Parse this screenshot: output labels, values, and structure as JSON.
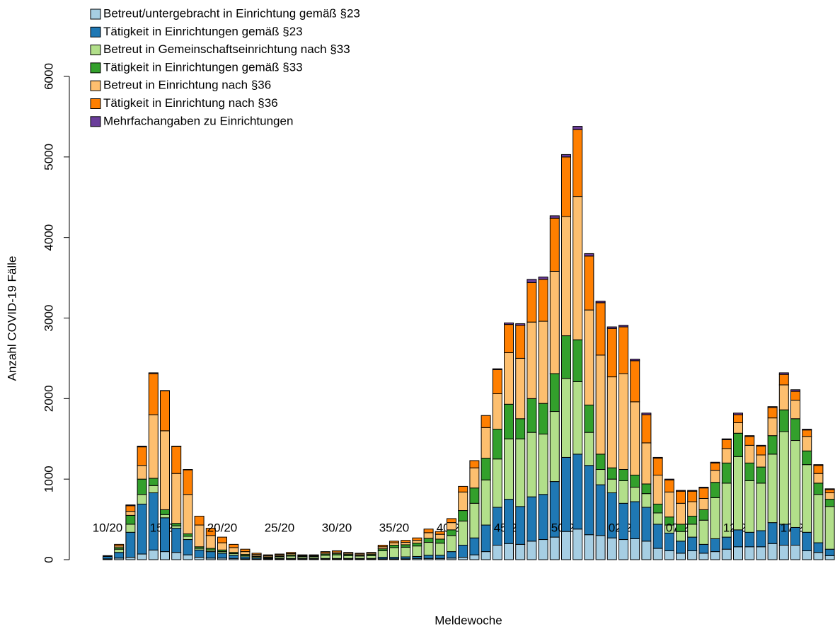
{
  "chart_data": {
    "type": "stacked_bar",
    "x_label": "Meldewoche",
    "y_label": "Anzahl COVID-19 Fälle",
    "categories": [
      "10/20",
      null,
      null,
      null,
      null,
      "15/20",
      null,
      null,
      null,
      null,
      "20/20",
      null,
      null,
      null,
      null,
      "25/20",
      null,
      null,
      null,
      null,
      "30/20",
      null,
      null,
      null,
      null,
      "35/20",
      null,
      null,
      null,
      null,
      "40/20",
      null,
      null,
      null,
      null,
      "45/20",
      null,
      null,
      null,
      null,
      "50/20",
      null,
      null,
      null,
      null,
      "02/21",
      null,
      null,
      null,
      null,
      "07/21",
      null,
      null,
      null,
      null,
      "12/21",
      null,
      null,
      null,
      null,
      "17/21",
      null,
      null,
      null
    ],
    "ylim": [
      0,
      6000
    ],
    "yticks": [
      0,
      1000,
      2000,
      3000,
      4000,
      5000,
      6000
    ],
    "grid": false,
    "legend": "topleft",
    "series": [
      {
        "name": "Betreut/untergebracht in Einrichtung gemäß §23",
        "color": "#A6CEE3",
        "values": [
          10,
          20,
          30,
          70,
          120,
          100,
          90,
          60,
          30,
          20,
          20,
          15,
          10,
          5,
          5,
          5,
          5,
          5,
          5,
          5,
          5,
          5,
          5,
          5,
          10,
          10,
          10,
          15,
          15,
          15,
          20,
          30,
          60,
          100,
          180,
          200,
          190,
          230,
          250,
          280,
          350,
          380,
          310,
          300,
          270,
          250,
          260,
          230,
          140,
          110,
          80,
          110,
          80,
          100,
          130,
          160,
          160,
          160,
          200,
          180,
          180,
          110,
          90,
          50
        ]
      },
      {
        "name": "Tätigkeit in Einrichtungen gemäß §23",
        "color": "#1F78B4",
        "values": [
          30,
          70,
          310,
          620,
          710,
          420,
          300,
          190,
          90,
          80,
          60,
          40,
          25,
          15,
          10,
          10,
          10,
          10,
          10,
          10,
          10,
          10,
          10,
          10,
          20,
          20,
          25,
          25,
          40,
          40,
          80,
          150,
          210,
          330,
          470,
          550,
          470,
          550,
          560,
          690,
          920,
          930,
          860,
          630,
          560,
          450,
          460,
          420,
          300,
          220,
          150,
          170,
          110,
          160,
          150,
          210,
          180,
          200,
          260,
          260,
          220,
          230,
          120,
          80
        ]
      },
      {
        "name": "Betreut in Gemeinschaftseinrichtung nach §33",
        "color": "#B2DF8A",
        "values": [
          0,
          40,
          100,
          120,
          90,
          40,
          30,
          40,
          20,
          20,
          20,
          20,
          15,
          15,
          10,
          20,
          30,
          20,
          20,
          40,
          45,
          35,
          30,
          35,
          80,
          120,
          120,
          130,
          160,
          150,
          200,
          300,
          430,
          560,
          600,
          750,
          840,
          800,
          750,
          870,
          980,
          900,
          410,
          190,
          170,
          280,
          180,
          170,
          140,
          100,
          120,
          160,
          300,
          510,
          670,
          910,
          640,
          590,
          850,
          1150,
          1080,
          840,
          600,
          530
        ]
      },
      {
        "name": "Tätigkeit in Einrichtungen gemäß §33",
        "color": "#33A02C",
        "values": [
          5,
          20,
          110,
          190,
          90,
          60,
          30,
          30,
          20,
          20,
          20,
          15,
          15,
          10,
          10,
          10,
          15,
          10,
          10,
          15,
          15,
          15,
          10,
          15,
          25,
          30,
          30,
          35,
          50,
          50,
          70,
          130,
          190,
          270,
          370,
          430,
          250,
          420,
          380,
          470,
          530,
          520,
          340,
          190,
          140,
          140,
          150,
          120,
          110,
          100,
          90,
          100,
          130,
          190,
          250,
          290,
          220,
          200,
          230,
          270,
          270,
          170,
          140,
          90
        ]
      },
      {
        "name": "Betreut in Einrichtung nach §36",
        "color": "#FDBF6F",
        "values": [
          0,
          20,
          50,
          170,
          790,
          980,
          620,
          490,
          270,
          160,
          90,
          60,
          35,
          20,
          15,
          15,
          15,
          10,
          10,
          15,
          20,
          15,
          15,
          15,
          25,
          30,
          30,
          35,
          70,
          60,
          90,
          230,
          250,
          380,
          440,
          640,
          750,
          950,
          1020,
          1270,
          1480,
          1780,
          1180,
          1230,
          1130,
          1190,
          910,
          510,
          360,
          310,
          260,
          180,
          140,
          150,
          180,
          130,
          220,
          150,
          220,
          310,
          230,
          180,
          120,
          80
        ]
      },
      {
        "name": "Tätigkeit in Einrichtung nach §36",
        "color": "#FF7F00",
        "values": [
          5,
          20,
          70,
          230,
          510,
          495,
          335,
          305,
          110,
          90,
          70,
          40,
          30,
          15,
          10,
          10,
          15,
          5,
          5,
          15,
          15,
          10,
          10,
          10,
          20,
          20,
          25,
          30,
          45,
          35,
          50,
          70,
          90,
          150,
          300,
          350,
          410,
          490,
          520,
          660,
          740,
          830,
          670,
          650,
          600,
          580,
          510,
          350,
          210,
          150,
          150,
          130,
          130,
          90,
          110,
          100,
          110,
          110,
          130,
          130,
          110,
          80,
          100,
          40
        ]
      },
      {
        "name": "Mehrfachangaben zu Einrichtungen",
        "color": "#6A3D9A",
        "values": [
          0,
          0,
          10,
          10,
          10,
          5,
          5,
          5,
          0,
          0,
          0,
          0,
          0,
          0,
          0,
          0,
          0,
          0,
          0,
          0,
          0,
          0,
          0,
          0,
          0,
          0,
          0,
          0,
          0,
          0,
          0,
          0,
          0,
          0,
          10,
          20,
          20,
          40,
          30,
          30,
          30,
          40,
          30,
          20,
          20,
          20,
          20,
          20,
          10,
          10,
          10,
          10,
          10,
          10,
          10,
          20,
          10,
          10,
          10,
          20,
          20,
          10,
          10,
          10
        ]
      }
    ]
  }
}
